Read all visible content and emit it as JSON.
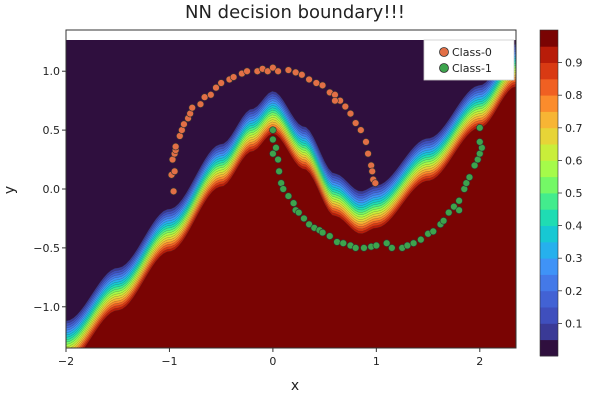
{
  "chart_data": {
    "type": "contour",
    "title": "NN decision boundary!!!",
    "xlabel": "x",
    "ylabel": "y",
    "xlim": [
      -2.0,
      2.35
    ],
    "ylim": [
      -1.35,
      1.35
    ],
    "xticks": [
      -2,
      -1,
      0,
      1,
      2
    ],
    "xtick_labels": [
      "−2",
      "−1",
      "0",
      "1",
      "2"
    ],
    "yticks": [
      -1.0,
      -0.5,
      0.0,
      0.5,
      1.0
    ],
    "ytick_labels": [
      "−1.0",
      "−0.5",
      "0.0",
      "0.5",
      "1.0"
    ],
    "colorbar": {
      "range": [
        0,
        1
      ],
      "ticks": [
        0.1,
        0.2,
        0.3,
        0.4,
        0.5,
        0.6,
        0.7,
        0.8,
        0.9
      ],
      "tick_labels": [
        "0.1",
        "0.2",
        "0.3",
        "0.4",
        "0.5",
        "0.6",
        "0.7",
        "0.8",
        "0.9"
      ],
      "levels": 20,
      "colormap": "turbo"
    },
    "legend": {
      "position": "top-right",
      "entries": [
        {
          "name": "Class-0",
          "color": "#e26f46"
        },
        {
          "name": "Class-1",
          "color": "#3da44d"
        }
      ]
    },
    "boundary": {
      "description_points_x": [
        -2.0,
        -1.5,
        -1.0,
        -0.5,
        -0.2,
        0.0,
        0.3,
        0.6,
        0.85,
        1.0,
        1.5,
        2.0,
        2.35
      ],
      "boundary_y": [
        -1.3,
        -0.85,
        -0.35,
        0.2,
        0.5,
        0.65,
        0.35,
        -0.05,
        -0.2,
        -0.15,
        0.25,
        0.7,
        1.05
      ]
    },
    "series": [
      {
        "name": "Class-0",
        "color": "#e26f46",
        "points": [
          [
            -0.96,
            -0.02
          ],
          [
            -0.98,
            0.12
          ],
          [
            -0.95,
            0.15
          ],
          [
            -0.97,
            0.25
          ],
          [
            -0.95,
            0.3
          ],
          [
            -0.94,
            0.33
          ],
          [
            -0.94,
            0.36
          ],
          [
            -0.9,
            0.45
          ],
          [
            -0.88,
            0.5
          ],
          [
            -0.86,
            0.55
          ],
          [
            -0.82,
            0.6
          ],
          [
            -0.8,
            0.64
          ],
          [
            -0.78,
            0.69
          ],
          [
            -0.7,
            0.72
          ],
          [
            -0.66,
            0.78
          ],
          [
            -0.6,
            0.8
          ],
          [
            -0.55,
            0.86
          ],
          [
            -0.5,
            0.9
          ],
          [
            -0.42,
            0.93
          ],
          [
            -0.38,
            0.95
          ],
          [
            -0.3,
            0.98
          ],
          [
            -0.25,
            1.0
          ],
          [
            -0.15,
            1.0
          ],
          [
            -0.1,
            1.02
          ],
          [
            -0.05,
            1.0
          ],
          [
            0.0,
            1.03
          ],
          [
            0.05,
            1.0
          ],
          [
            0.15,
            1.01
          ],
          [
            0.22,
            0.99
          ],
          [
            0.28,
            0.97
          ],
          [
            0.35,
            0.93
          ],
          [
            0.42,
            0.9
          ],
          [
            0.48,
            0.88
          ],
          [
            0.55,
            0.82
          ],
          [
            0.6,
            0.8
          ],
          [
            0.65,
            0.75
          ],
          [
            0.7,
            0.7
          ],
          [
            0.75,
            0.64
          ],
          [
            0.8,
            0.56
          ],
          [
            0.85,
            0.5
          ],
          [
            0.9,
            0.4
          ],
          [
            0.92,
            0.3
          ],
          [
            0.95,
            0.2
          ],
          [
            0.96,
            0.15
          ],
          [
            0.97,
            0.08
          ],
          [
            0.99,
            0.05
          ],
          [
            0.6,
            0.75
          ]
        ]
      },
      {
        "name": "Class-1",
        "color": "#3da44d",
        "points": [
          [
            0.0,
            0.5
          ],
          [
            0.0,
            0.42
          ],
          [
            0.03,
            0.35
          ],
          [
            0.0,
            0.3
          ],
          [
            0.05,
            0.25
          ],
          [
            0.06,
            0.15
          ],
          [
            0.08,
            0.05
          ],
          [
            0.1,
            0.0
          ],
          [
            0.15,
            -0.06
          ],
          [
            0.2,
            -0.12
          ],
          [
            0.22,
            -0.18
          ],
          [
            0.25,
            -0.2
          ],
          [
            0.3,
            -0.25
          ],
          [
            0.35,
            -0.3
          ],
          [
            0.4,
            -0.33
          ],
          [
            0.45,
            -0.35
          ],
          [
            0.48,
            -0.37
          ],
          [
            0.55,
            -0.4
          ],
          [
            0.62,
            -0.45
          ],
          [
            0.68,
            -0.46
          ],
          [
            0.75,
            -0.48
          ],
          [
            0.8,
            -0.5
          ],
          [
            0.88,
            -0.5
          ],
          [
            0.95,
            -0.49
          ],
          [
            1.0,
            -0.48
          ],
          [
            1.1,
            -0.46
          ],
          [
            1.15,
            -0.5
          ],
          [
            1.25,
            -0.5
          ],
          [
            1.3,
            -0.48
          ],
          [
            1.36,
            -0.46
          ],
          [
            1.43,
            -0.43
          ],
          [
            1.5,
            -0.38
          ],
          [
            1.55,
            -0.36
          ],
          [
            1.62,
            -0.3
          ],
          [
            1.65,
            -0.27
          ],
          [
            1.7,
            -0.2
          ],
          [
            1.75,
            -0.15
          ],
          [
            1.8,
            -0.1
          ],
          [
            1.85,
            0.0
          ],
          [
            1.87,
            0.05
          ],
          [
            1.9,
            0.1
          ],
          [
            1.95,
            0.2
          ],
          [
            1.98,
            0.25
          ],
          [
            2.0,
            0.3
          ],
          [
            2.02,
            0.35
          ],
          [
            2.0,
            0.4
          ],
          [
            2.0,
            0.52
          ],
          [
            1.8,
            -0.18
          ]
        ]
      }
    ]
  }
}
